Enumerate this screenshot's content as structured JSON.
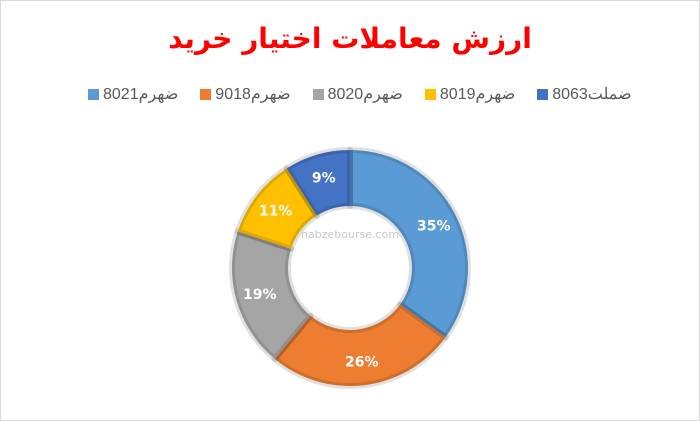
{
  "chart_data": {
    "type": "pie",
    "title": "ارزش معاملات اختیار خرید",
    "categories": [
      "ضهرم8021",
      "ضهرم9018",
      "ضهرم8020",
      "ضهرم8019",
      "ضملت8063"
    ],
    "values": [
      35,
      26,
      19,
      11,
      9
    ],
    "labels": [
      "35%",
      "26%",
      "19%",
      "11%",
      "9%"
    ],
    "colors": [
      "#5b9bd5",
      "#ed7d31",
      "#a5a5a5",
      "#ffc000",
      "#4472c4"
    ],
    "legend_position": "top",
    "hole": true
  },
  "watermark": "nabzebourse.com"
}
